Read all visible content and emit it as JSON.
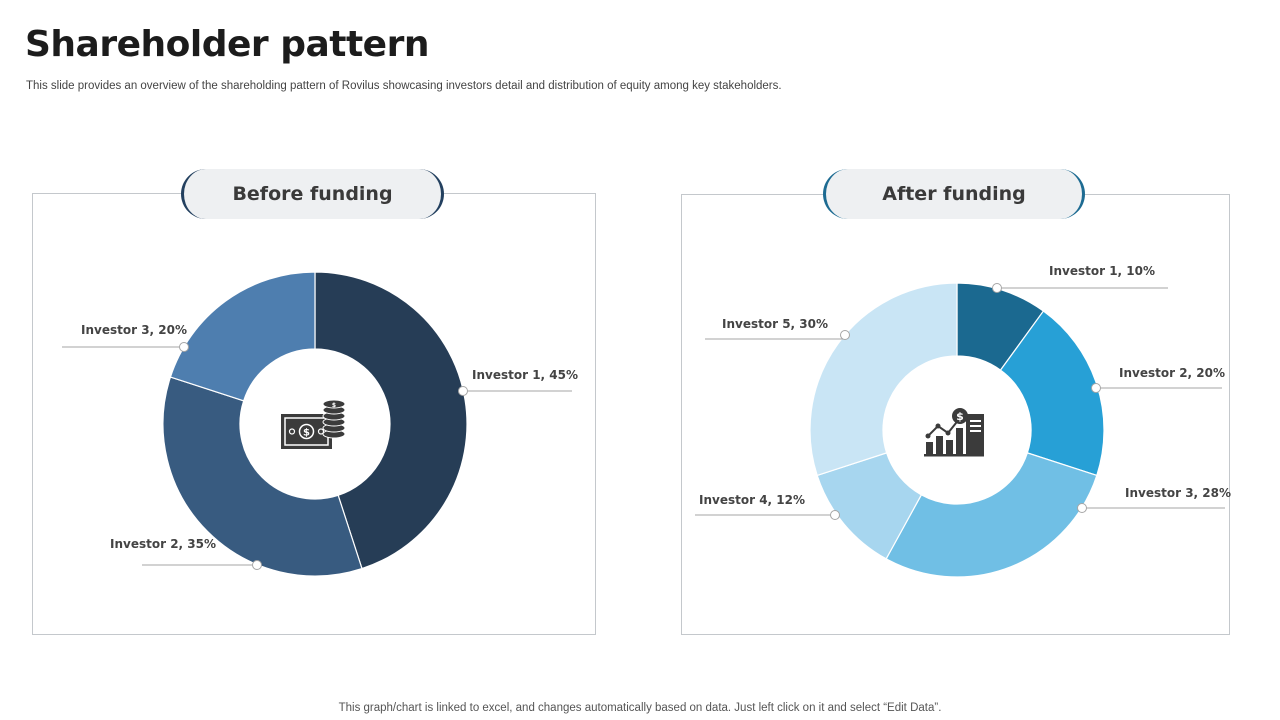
{
  "slide": {
    "title": "Shareholder pattern",
    "subtitle": "This slide provides an overview of the shareholding pattern of Rovilus showcasing investors detail and distribution of equity among key stakeholders.",
    "footnote": "This graph/chart is linked to excel,  and changes automatically based on data. Just left click on it and select “Edit Data”."
  },
  "chart_data": [
    {
      "type": "pie",
      "title": "Before funding",
      "center_icon": "money-stack-icon",
      "categories": [
        "Investor 1",
        "Investor 2",
        "Investor 3"
      ],
      "values": [
        45,
        35,
        20
      ],
      "labels": [
        "Investor 1, 45%",
        "Investor 2, 35%",
        "Investor 3, 20%"
      ],
      "colors": [
        "#263d56",
        "#385b80",
        "#4e7eaf"
      ]
    },
    {
      "type": "pie",
      "title": "After funding",
      "center_icon": "growth-chart-dollar-icon",
      "categories": [
        "Investor 1",
        "Investor 2",
        "Investor 3",
        "Investor 4",
        "Investor 5"
      ],
      "values": [
        10,
        20,
        28,
        12,
        30
      ],
      "labels": [
        "Investor 1, 10%",
        "Investor 2, 20%",
        "Investor 3, 28%",
        "Investor 4, 12%",
        "Investor 5, 30%"
      ],
      "colors": [
        "#1b6990",
        "#27a0d6",
        "#70bfe5",
        "#a7d6ef",
        "#c9e5f5"
      ]
    }
  ]
}
